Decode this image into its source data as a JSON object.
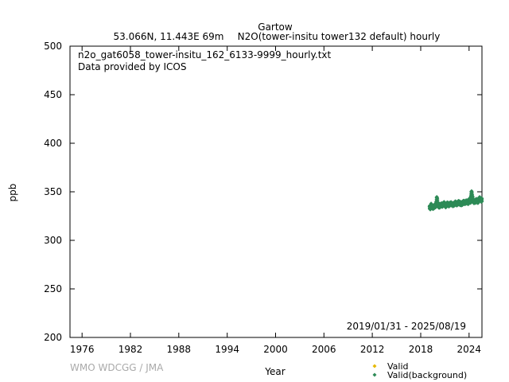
{
  "chart_data": {
    "type": "scatter",
    "title": "Gartow",
    "subtitle_location": "53.066N, 11.443E 69m",
    "subtitle_gas": "N2O(tower-insitu tower132 default) hourly",
    "file_label": "n2o_gat6058_tower-insitu_162_6133-9999_hourly.txt",
    "provider_label": "Data provided by ICOS",
    "date_range": "2019/01/31 - 2025/08/19",
    "xlabel": "Year",
    "ylabel": "ppb",
    "xlim": [
      1974.5,
      2025.6
    ],
    "ylim": [
      200,
      500
    ],
    "xticks": [
      1976,
      1982,
      1988,
      1994,
      2000,
      2006,
      2012,
      2018,
      2024
    ],
    "yticks": [
      200,
      250,
      300,
      350,
      400,
      450,
      500
    ],
    "legend_position": "bottom-right",
    "series": [
      {
        "name": "Valid",
        "color": "#e6b800",
        "marker": "diamond",
        "values": []
      },
      {
        "name": "Valid(background)",
        "color": "#2e8b57",
        "marker": "diamond",
        "x": [
          2019.1,
          2019.2,
          2019.3,
          2019.5,
          2019.7,
          2019.9,
          2020.0,
          2020.2,
          2020.3,
          2020.5,
          2020.7,
          2020.9,
          2021.1,
          2021.3,
          2021.5,
          2021.7,
          2021.9,
          2022.1,
          2022.3,
          2022.5,
          2022.7,
          2022.9,
          2023.1,
          2023.3,
          2023.5,
          2023.7,
          2023.9,
          2024.1,
          2024.2,
          2024.3,
          2024.4,
          2024.5,
          2024.7,
          2024.9,
          2025.1,
          2025.3,
          2025.5
        ],
        "values": [
          334.5,
          333.0,
          336.5,
          333.5,
          335.0,
          336.0,
          343.5,
          336.0,
          334.5,
          337.0,
          336.0,
          338.0,
          335.5,
          337.5,
          336.5,
          338.0,
          337.0,
          336.5,
          338.5,
          337.5,
          339.0,
          338.0,
          337.5,
          339.5,
          338.5,
          340.0,
          339.0,
          342.0,
          340.0,
          350.0,
          345.0,
          340.5,
          339.5,
          341.0,
          340.0,
          343.0,
          341.5
        ]
      }
    ]
  },
  "watermark": "WMO WDCGG / JMA"
}
